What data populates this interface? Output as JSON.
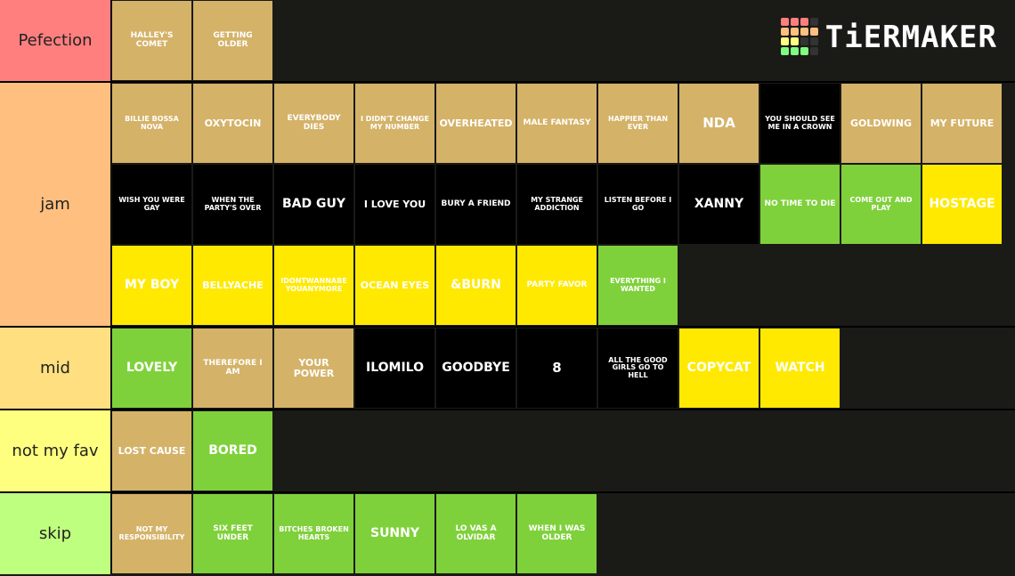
{
  "logo": "TiERMAKER",
  "tiers": [
    {
      "label": "Pefection",
      "color": "#ff7f7f",
      "items": [
        {
          "text": "HALLEY'S COMET",
          "color": "#d4b268"
        },
        {
          "text": "GETTING OLDER",
          "color": "#d4b268"
        }
      ]
    },
    {
      "label": "jam",
      "color": "#ffbf7f",
      "items": [
        {
          "text": "BILLIE BOSSA NOVA",
          "color": "#d4b268"
        },
        {
          "text": "OXYTOCIN",
          "color": "#d4b268"
        },
        {
          "text": "EVERYBODY DIES",
          "color": "#d4b268"
        },
        {
          "text": "I DIDN'T CHANGE MY NUMBER",
          "color": "#d4b268"
        },
        {
          "text": "OVERHEATED",
          "color": "#d4b268"
        },
        {
          "text": "MALE FANTASY",
          "color": "#d4b268"
        },
        {
          "text": "HAPPIER THAN EVER",
          "color": "#d4b268"
        },
        {
          "text": "NDA",
          "color": "#d4b268"
        },
        {
          "text": "YOU SHOULD SEE ME IN A CROWN",
          "color": "#000000"
        },
        {
          "text": "GOLDWING",
          "color": "#d4b268"
        },
        {
          "text": "MY FUTURE",
          "color": "#d4b268"
        },
        {
          "text": "WISH YOU WERE GAY",
          "color": "#000000"
        },
        {
          "text": "WHEN THE PARTY'S OVER",
          "color": "#000000"
        },
        {
          "text": "BAD GUY",
          "color": "#000000"
        },
        {
          "text": "I LOVE YOU",
          "color": "#000000"
        },
        {
          "text": "BURY A FRIEND",
          "color": "#000000"
        },
        {
          "text": "MY STRANGE ADDICTION",
          "color": "#000000"
        },
        {
          "text": "LISTEN BEFORE I GO",
          "color": "#000000"
        },
        {
          "text": "XANNY",
          "color": "#000000"
        },
        {
          "text": "NO TIME TO DIE",
          "color": "#7fd13b"
        },
        {
          "text": "COME OUT AND PLAY",
          "color": "#7fd13b"
        },
        {
          "text": "HOSTAGE",
          "color": "#ffe900"
        },
        {
          "text": "MY BOY",
          "color": "#ffe900"
        },
        {
          "text": "BELLYACHE",
          "color": "#ffe900"
        },
        {
          "text": "IDONTWANNABE YOUANYMORE",
          "color": "#ffe900"
        },
        {
          "text": "OCEAN EYES",
          "color": "#ffe900"
        },
        {
          "text": "&BURN",
          "color": "#ffe900"
        },
        {
          "text": "PARTY FAVOR",
          "color": "#ffe900"
        },
        {
          "text": "EVERYTHING I WANTED",
          "color": "#7fd13b"
        }
      ]
    },
    {
      "label": "mid",
      "color": "#ffdf7f",
      "items": [
        {
          "text": "LOVELY",
          "color": "#7fd13b"
        },
        {
          "text": "THEREFORE I AM",
          "color": "#d4b268"
        },
        {
          "text": "YOUR POWER",
          "color": "#d4b268"
        },
        {
          "text": "ILOMILO",
          "color": "#000000"
        },
        {
          "text": "GOODBYE",
          "color": "#000000"
        },
        {
          "text": "8",
          "color": "#000000"
        },
        {
          "text": "ALL THE GOOD GIRLS GO TO HELL",
          "color": "#000000"
        },
        {
          "text": "COPYCAT",
          "color": "#ffe900"
        },
        {
          "text": "WATCH",
          "color": "#ffe900"
        }
      ]
    },
    {
      "label": "not my fav",
      "color": "#ffff7f",
      "items": [
        {
          "text": "LOST CAUSE",
          "color": "#d4b268"
        },
        {
          "text": "BORED",
          "color": "#7fd13b"
        }
      ]
    },
    {
      "label": "skip",
      "color": "#bfff7f",
      "items": [
        {
          "text": "NOT MY RESPONSIBILITY",
          "color": "#d4b268"
        },
        {
          "text": "SIX FEET UNDER",
          "color": "#7fd13b"
        },
        {
          "text": "BITCHES BROKEN HEARTS",
          "color": "#7fd13b"
        },
        {
          "text": "SUNNY",
          "color": "#7fd13b"
        },
        {
          "text": "LO VAS A OLVIDAR",
          "color": "#7fd13b"
        },
        {
          "text": "WHEN I WAS OLDER",
          "color": "#7fd13b"
        }
      ]
    }
  ]
}
